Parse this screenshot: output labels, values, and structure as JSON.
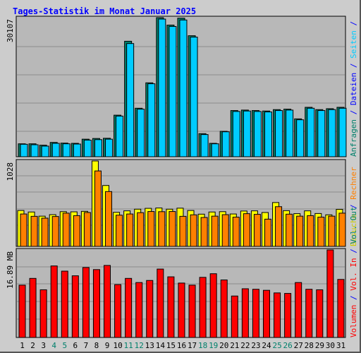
{
  "title": "Tages-Statistik im Monat Januar 2025",
  "colors": {
    "title": "#0000ff",
    "frame_bg": "#cccccc",
    "plot_bg": "#b8b8b8",
    "grid": "#8c8c8c",
    "anfragen_front": "#00ccff",
    "anfragen_back": "#00806b",
    "besuche": "#ffff00",
    "rechner": "#ff8000",
    "volumen_in": "#ff0000",
    "day_black": "#000000",
    "day_weekend": "#00806b"
  },
  "right_labels": {
    "top": [
      {
        "text": "Anfragen",
        "color": "#00806b"
      },
      {
        "text": " / ",
        "color": "#0000ff"
      },
      {
        "text": "Dateien",
        "color": "#0000ff"
      },
      {
        "text": " / ",
        "color": "#0000ff"
      },
      {
        "text": "Seiten",
        "color": "#00ccff"
      },
      {
        "text": " / ",
        "color": "#0000ff"
      }
    ],
    "middle": [
      {
        "text": "Besuche",
        "color": "#cccc00"
      },
      {
        "text": " / ",
        "color": "#0000ff"
      },
      {
        "text": "Rechner",
        "color": "#ff8000"
      }
    ],
    "bottom": [
      {
        "text": "Volumen",
        "color": "#ff0000"
      },
      {
        "text": " / ",
        "color": "#0000ff"
      },
      {
        "text": "Vol. In",
        "color": "#ff0000"
      },
      {
        "text": " / ",
        "color": "#0000ff"
      },
      {
        "text": "Vol. Out",
        "color": "#00806b"
      }
    ]
  },
  "chart_data": [
    {
      "type": "bar",
      "panel": "top",
      "ymax_label": "30107",
      "ymax": 30107,
      "categories": [
        "1",
        "2",
        "3",
        "4",
        "5",
        "6",
        "7",
        "8",
        "9",
        "10",
        "11",
        "12",
        "13",
        "14",
        "15",
        "16",
        "17",
        "18",
        "19",
        "20",
        "21",
        "22",
        "23",
        "24",
        "25",
        "26",
        "27",
        "28",
        "29",
        "30",
        "31"
      ],
      "weekend_days": [
        "4",
        "5",
        "11",
        "12",
        "18",
        "19",
        "25",
        "26"
      ],
      "series": [
        {
          "name": "Anfragen",
          "values": [
            2800,
            2800,
            2500,
            3100,
            2950,
            2900,
            3800,
            3950,
            4000,
            9000,
            25000,
            10500,
            16000,
            30107,
            28500,
            30000,
            26200,
            5000,
            2900,
            5500,
            10000,
            10100,
            10000,
            9900,
            10200,
            10300,
            8200,
            10700,
            10200,
            10400,
            10700
          ]
        },
        {
          "name": "Dateien",
          "values": [
            2700,
            2600,
            2300,
            2900,
            2800,
            2750,
            3600,
            3700,
            3800,
            8800,
            24500,
            10300,
            15800,
            29800,
            28200,
            29600,
            25900,
            4800,
            2800,
            5400,
            9800,
            9900,
            9800,
            9700,
            10000,
            10100,
            8000,
            10500,
            10000,
            10200,
            10500
          ]
        }
      ]
    },
    {
      "type": "bar",
      "panel": "middle",
      "ymax_label": "1028",
      "ymax": 1028,
      "categories": [
        "1",
        "2",
        "3",
        "4",
        "5",
        "6",
        "7",
        "8",
        "9",
        "10",
        "11",
        "12",
        "13",
        "14",
        "15",
        "16",
        "17",
        "18",
        "19",
        "20",
        "21",
        "22",
        "23",
        "24",
        "25",
        "26",
        "27",
        "28",
        "29",
        "30",
        "31"
      ],
      "series": [
        {
          "name": "Besuche",
          "values": [
            432,
            414,
            364,
            382,
            418,
            416,
            422,
            1028,
            733,
            410,
            428,
            448,
            458,
            462,
            448,
            460,
            432,
            388,
            414,
            418,
            390,
            426,
            428,
            408,
            528,
            430,
            394,
            428,
            396,
            380,
            446
          ]
        },
        {
          "name": "Rechner",
          "values": [
            390,
            362,
            340,
            360,
            400,
            370,
            408,
            908,
            660,
            376,
            390,
            406,
            420,
            418,
            420,
            362,
            380,
            348,
            364,
            382,
            352,
            394,
            386,
            328,
            478,
            388,
            364,
            370,
            352,
            364,
            400
          ]
        }
      ]
    },
    {
      "type": "bar",
      "panel": "bottom",
      "ymax_label": "16.89 MB",
      "ymax": 16.89,
      "categories": [
        "1",
        "2",
        "3",
        "4",
        "5",
        "6",
        "7",
        "8",
        "9",
        "10",
        "11",
        "12",
        "13",
        "14",
        "15",
        "16",
        "17",
        "18",
        "19",
        "20",
        "21",
        "22",
        "23",
        "24",
        "25",
        "26",
        "27",
        "28",
        "29",
        "30",
        "31"
      ],
      "series": [
        {
          "name": "Volumen",
          "values": [
            10.1,
            11.4,
            9.2,
            13.8,
            12.8,
            11.9,
            13.5,
            13.1,
            13.9,
            10.2,
            11.4,
            10.6,
            11.0,
            13.2,
            11.7,
            10.5,
            10.1,
            11.6,
            12.3,
            11.1,
            8.0,
            9.4,
            9.3,
            9.1,
            8.6,
            8.5,
            10.6,
            9.3,
            9.2,
            16.89,
            11.2
          ]
        }
      ]
    }
  ]
}
